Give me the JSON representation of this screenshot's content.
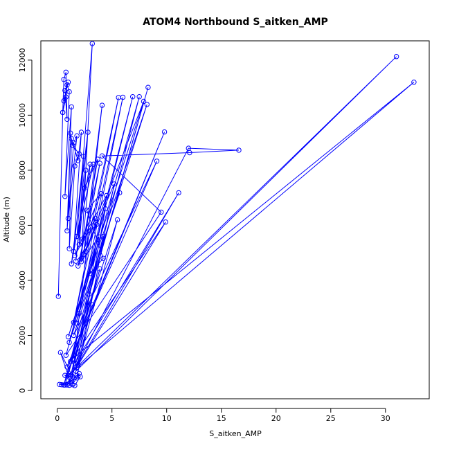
{
  "chart_data": {
    "type": "line",
    "title": "ATOM4 Northbound S_aitken_AMP",
    "xlabel": "S_aitken_AMP",
    "ylabel": "Altitude (m)",
    "xlim": [
      -1.5,
      34
    ],
    "ylim": [
      -300,
      12700
    ],
    "x_ticks": [
      0,
      5,
      10,
      15,
      20,
      25,
      30
    ],
    "x_tick_labels": [
      "0",
      "5",
      "10",
      "15",
      "20",
      "25",
      "30"
    ],
    "y_ticks": [
      0,
      2000,
      4000,
      6000,
      8000,
      10000,
      12000
    ],
    "y_tick_labels": [
      "0",
      "2000",
      "4000",
      "6000",
      "8000",
      "10000",
      "12000"
    ],
    "grid": false,
    "legend": "none",
    "marker": "open-circle",
    "colors": {
      "series": "#0000ff",
      "axes": "#000000"
    },
    "series": [
      {
        "x": [
          0.1,
          0.5,
          0.6,
          0.8,
          0.9,
          0.7,
          1.0,
          0.6,
          0.8,
          0.5,
          0.9,
          1.1,
          0.7,
          1.3,
          0.9,
          1.5,
          1.8,
          1.0,
          1.2,
          1.4,
          2.0,
          1.6,
          1.1,
          1.3,
          1.9,
          2.2,
          1.5,
          2.4,
          2.0,
          2.6,
          1.7,
          2.8,
          1.3,
          3.0,
          2.2,
          3.2,
          1.8,
          3.3,
          2.5,
          3.7,
          2.1,
          3.5,
          1.6,
          4.0,
          2.7,
          4.2,
          3.0,
          4.5,
          2.3,
          3.6,
          1.9,
          3.9,
          2.4,
          4.1,
          1.4,
          0.3,
          1.2,
          0.7,
          1.8,
          5.2,
          2.6,
          5.6,
          1.5,
          6.0,
          2.0,
          6.9,
          1.1,
          5.7,
          1.7,
          7.5,
          2.9,
          8.3,
          1.2,
          9.8,
          0.9,
          9.1,
          1.5,
          8.2,
          1.0,
          7.9,
          2.2,
          3.8,
          1.6,
          11.1,
          1.3,
          12.0,
          16.6,
          12.1,
          4.1,
          9.5,
          0.8,
          4.4,
          1.7,
          31.0,
          1.0,
          32.6,
          1.4,
          9.9,
          1.9,
          5.5,
          0.6,
          4.2,
          1.2,
          3.9,
          0.7,
          2.1,
          1.6,
          0.4,
          1.3,
          0.2,
          1.1,
          3.2,
          1.4,
          2.0,
          0.9
        ],
        "y": [
          3420,
          10100,
          11300,
          11560,
          9850,
          10900,
          11200,
          10520,
          10660,
          10100,
          11100,
          10850,
          7050,
          10300,
          5800,
          9000,
          9250,
          6250,
          9350,
          8900,
          8600,
          8150,
          5150,
          9150,
          8350,
          9380,
          5050,
          8500,
          5300,
          8000,
          4700,
          9380,
          4600,
          8220,
          4800,
          12600,
          5600,
          8220,
          7350,
          8400,
          4750,
          6250,
          4900,
          7150,
          6550,
          4800,
          4250,
          7080,
          5500,
          6030,
          4520,
          8250,
          4950,
          10360,
          500,
          1380,
          300,
          550,
          460,
          7500,
          5050,
          10640,
          2470,
          10650,
          2800,
          10670,
          1750,
          7180,
          2450,
          10670,
          3500,
          11010,
          1050,
          9390,
          860,
          8330,
          2000,
          10390,
          1950,
          10500,
          4680,
          5580,
          1000,
          7180,
          560,
          8800,
          8730,
          8640,
          8520,
          6480,
          1280,
          6600,
          700,
          12130,
          550,
          11200,
          1150,
          6120,
          920,
          6200,
          200,
          5600,
          500,
          4420,
          200,
          500,
          180,
          210,
          350,
          220,
          190,
          3110,
          210,
          620,
          200
        ]
      }
    ]
  }
}
